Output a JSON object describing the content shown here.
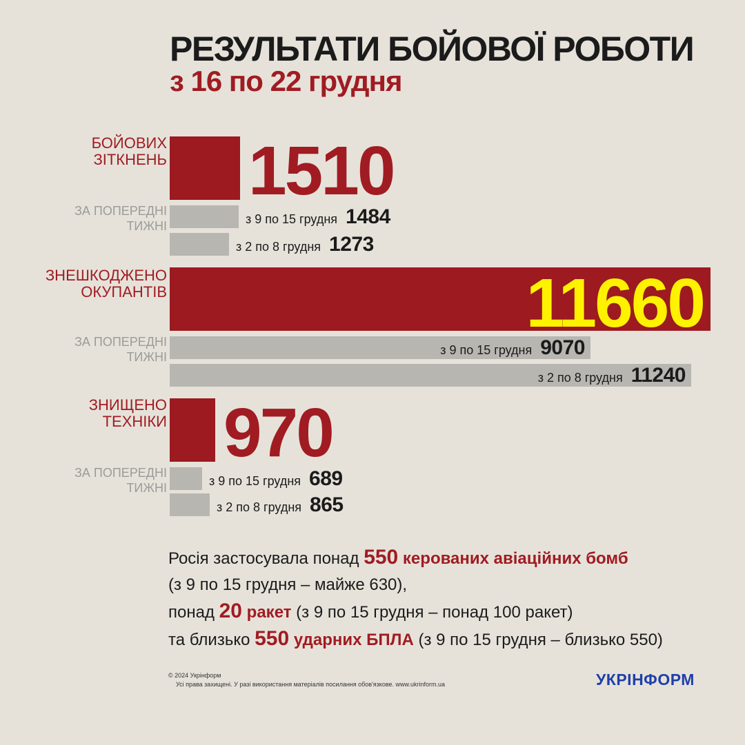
{
  "header": {
    "title": "РЕЗУЛЬТАТИ БОЙОВОЇ РОБОТИ",
    "subtitle": "з 16 по 22 грудня"
  },
  "chart_data": {
    "type": "bar",
    "orientation": "horizontal",
    "groups": [
      {
        "label": "БОЙОВИХ\nЗІТКНЕНЬ",
        "current": {
          "value": 1510
        },
        "previous_label": "ЗА ПОПЕРЕДНІ\nТИЖНІ",
        "previous": [
          {
            "period": "з 9 по 15 грудня",
            "value": 1484
          },
          {
            "period": "з 2 по 8 грудня",
            "value": 1273
          }
        ]
      },
      {
        "label": "ЗНЕШКОДЖЕНО\nОКУПАНТІВ",
        "current": {
          "value": 11660
        },
        "previous_label": "ЗА ПОПЕРЕДНІ\nТИЖНІ",
        "previous": [
          {
            "period": "з 9 по 15 грудня",
            "value": 9070
          },
          {
            "period": "з 2 по 8 грудня",
            "value": 11240
          }
        ]
      },
      {
        "label": "ЗНИЩЕНО\nТЕХНІКИ",
        "current": {
          "value": 970
        },
        "previous_label": "ЗА ПОПЕРЕДНІ\nТИЖНІ",
        "previous": [
          {
            "period": "з 9 по 15 грудня",
            "value": 689
          },
          {
            "period": "з 2 по 8 грудня",
            "value": 865
          }
        ]
      }
    ]
  },
  "summary": {
    "line1_prefix": "Росія застосувала понад",
    "line1_num": "550",
    "line1_em": "керованих авіаційних бомб",
    "line2": "(з 9 по 15 грудня – майже 630),",
    "line3_prefix": "понад",
    "line3_num": "20",
    "line3_em": "ракет",
    "line3_suffix": "(з 9 по 15 грудня – понад 100 ракет)",
    "line4_prefix": "та близько",
    "line4_num": "550",
    "line4_em": "ударних БПЛА",
    "line4_suffix": "(з 9 по 15 грудня – близько 550)"
  },
  "footer": {
    "copyright": "© 2024 Укрінформ",
    "rights": "Усі права захищені. У разі використання матеріалів посилання обов'язкове. www.ukrinform.ua",
    "logo": "УКРІНФОРМ"
  },
  "colors": {
    "background": "#e6e2da",
    "accent_red": "#9c1a20",
    "bar_grey": "#b8b6b1",
    "highlight_yellow": "#fff200",
    "logo_blue": "#1f3fa8"
  }
}
